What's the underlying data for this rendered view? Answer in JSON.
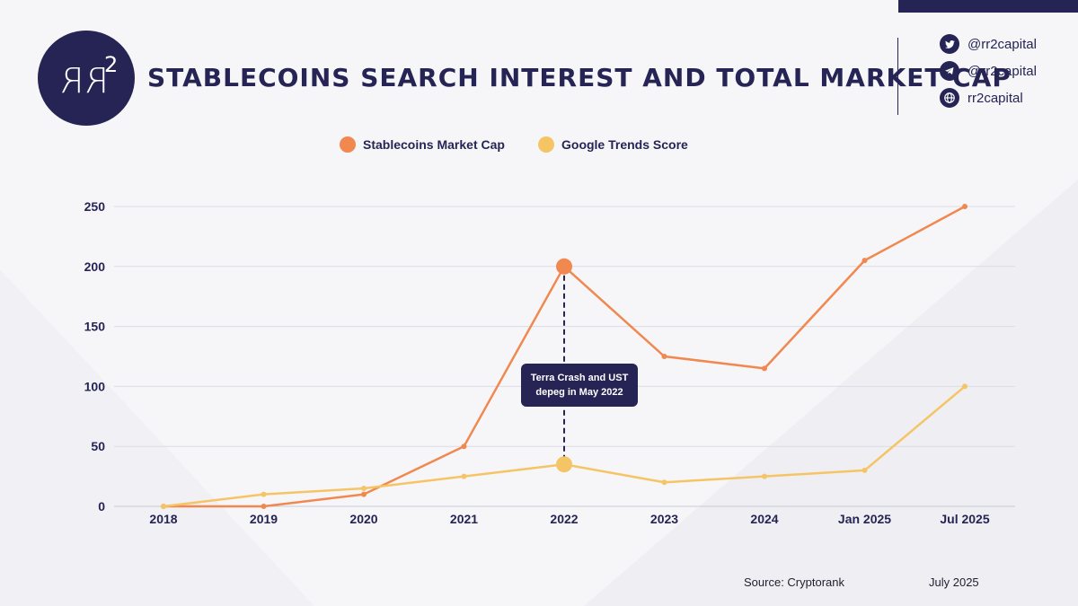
{
  "header": {
    "logo_text": "RR",
    "logo_sup": "2",
    "title": "STABLECOINS SEARCH INTEREST AND TOTAL MARKET CAP"
  },
  "social": [
    {
      "icon": "twitter-icon",
      "label": "@rr2capital"
    },
    {
      "icon": "telegram-icon",
      "label": "@rr2capital"
    },
    {
      "icon": "globe-icon",
      "label": "rr2capital"
    }
  ],
  "footer": {
    "source": "Source: Cryptorank",
    "date": "July 2025"
  },
  "colors": {
    "navy": "#252454",
    "market_cap": "#f0884f",
    "trends": "#f5c465"
  },
  "chart_data": {
    "type": "line",
    "title": "STABLECOINS SEARCH INTEREST AND TOTAL MARKET CAP",
    "categories": [
      "2018",
      "2019",
      "2020",
      "2021",
      "2022",
      "2023",
      "2024",
      "Jan 2025",
      "Jul 2025"
    ],
    "ylim": [
      0,
      250
    ],
    "yticks": [
      0,
      50,
      100,
      150,
      200,
      250
    ],
    "grid": true,
    "legend_position": "top-center",
    "series": [
      {
        "name": "Stablecoins Market Cap",
        "color": "#f0884f",
        "values": [
          0,
          0,
          10,
          50,
          200,
          125,
          115,
          205,
          250
        ]
      },
      {
        "name": "Google Trends Score",
        "color": "#f5c465",
        "values": [
          0,
          10,
          15,
          25,
          35,
          20,
          25,
          30,
          100
        ]
      }
    ],
    "annotation": {
      "text": "Terra Crash and UST depeg in May 2022",
      "category": "2022"
    }
  }
}
